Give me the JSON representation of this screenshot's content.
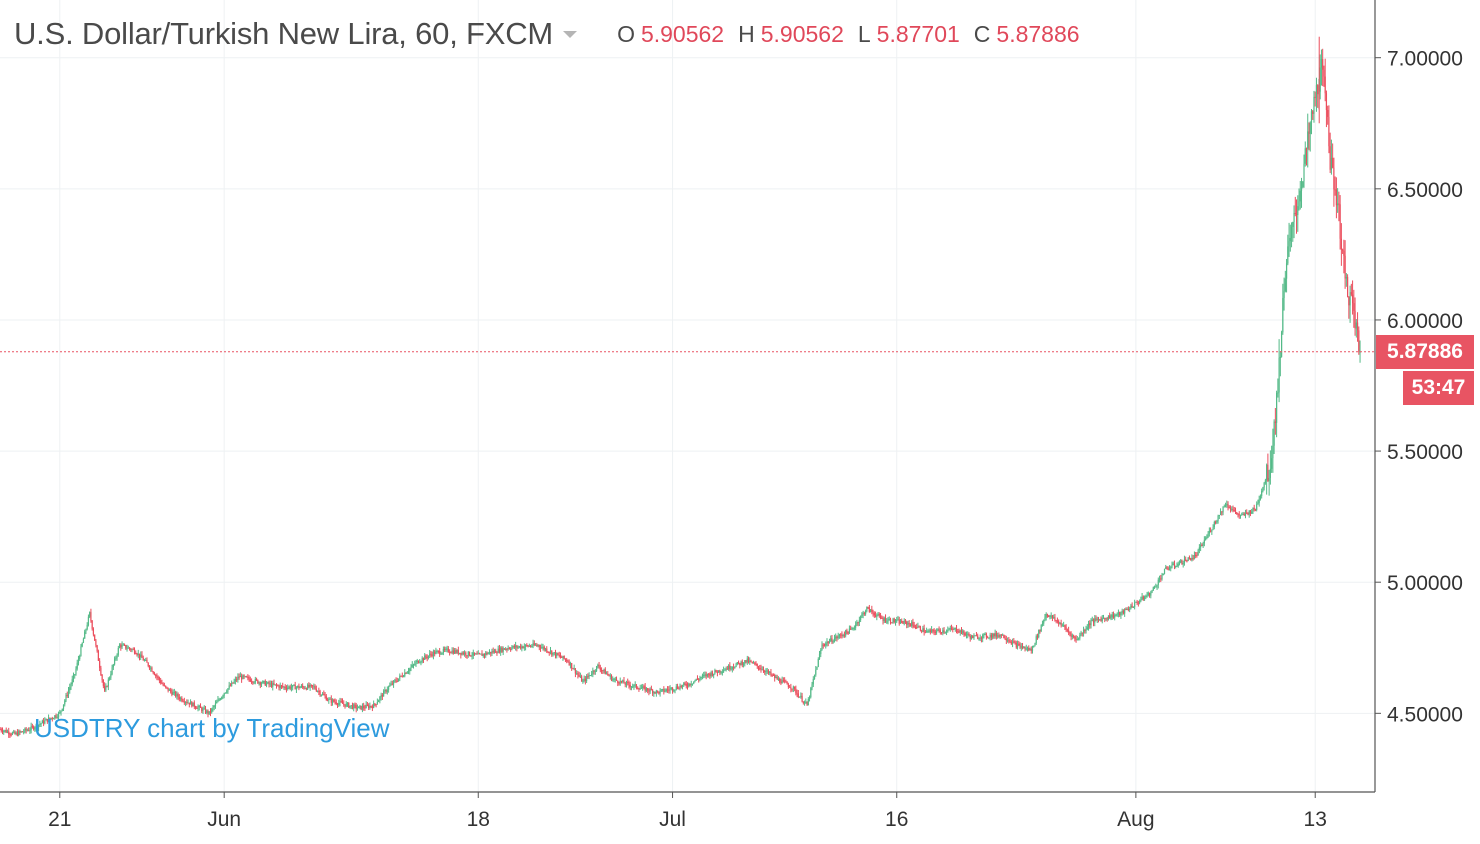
{
  "header": {
    "title": "U.S. Dollar/Turkish New Lira, 60, FXCM",
    "ohlc": {
      "o_label": "O",
      "o_value": "5.90562",
      "h_label": "H",
      "h_value": "5.90562",
      "l_label": "L",
      "l_value": "5.87701",
      "c_label": "C",
      "c_value": "5.87886"
    }
  },
  "watermark": "USDTRY chart by TradingView",
  "last_price_tag": "5.87886",
  "countdown_tag": "53:47",
  "colors": {
    "up": "#53b987",
    "down": "#eb4d5c",
    "price_tag": "#e85463",
    "grid": "#eef1f3",
    "axis": "#555555",
    "watermark": "#2d9bde"
  },
  "chart_data": {
    "type": "candlestick",
    "symbol": "USDTRY",
    "interval": "60",
    "source": "FXCM",
    "y_axis": {
      "position": "right",
      "ticks": [
        4.5,
        5.0,
        5.5,
        6.0,
        6.5,
        7.0
      ],
      "tick_labels": [
        "4.50000",
        "5.00000",
        "5.50000",
        "6.00000",
        "6.50000",
        "7.00000"
      ],
      "range": [
        4.2,
        7.22
      ]
    },
    "x_axis": {
      "tick_labels": [
        "21",
        "Jun",
        "18",
        "Jul",
        "16",
        "Aug",
        "13"
      ],
      "tick_dates": [
        "2018-05-21",
        "2018-06-01",
        "2018-06-18",
        "2018-07-01",
        "2018-07-16",
        "2018-08-01",
        "2018-08-13"
      ],
      "range": [
        "2018-05-17",
        "2018-08-17"
      ]
    },
    "grid": true,
    "last_price": 5.87886,
    "price_path": [
      [
        "2018-05-17",
        4.44
      ],
      [
        "2018-05-18",
        4.42
      ],
      [
        "2018-05-19",
        4.44
      ],
      [
        "2018-05-21",
        4.5
      ],
      [
        "2018-05-22",
        4.65
      ],
      [
        "2018-05-23",
        4.88
      ],
      [
        "2018-05-24",
        4.58
      ],
      [
        "2018-05-25",
        4.76
      ],
      [
        "2018-05-26",
        4.74
      ],
      [
        "2018-05-27",
        4.68
      ],
      [
        "2018-05-28",
        4.6
      ],
      [
        "2018-05-29",
        4.56
      ],
      [
        "2018-05-31",
        4.5
      ],
      [
        "2018-06-01",
        4.58
      ],
      [
        "2018-06-02",
        4.64
      ],
      [
        "2018-06-04",
        4.61
      ],
      [
        "2018-06-05",
        4.6
      ],
      [
        "2018-06-07",
        4.6
      ],
      [
        "2018-06-08",
        4.55
      ],
      [
        "2018-06-10",
        4.52
      ],
      [
        "2018-06-11",
        4.53
      ],
      [
        "2018-06-12",
        4.6
      ],
      [
        "2018-06-14",
        4.7
      ],
      [
        "2018-06-15",
        4.73
      ],
      [
        "2018-06-16",
        4.74
      ],
      [
        "2018-06-18",
        4.72
      ],
      [
        "2018-06-20",
        4.75
      ],
      [
        "2018-06-22",
        4.76
      ],
      [
        "2018-06-24",
        4.7
      ],
      [
        "2018-06-25",
        4.62
      ],
      [
        "2018-06-26",
        4.68
      ],
      [
        "2018-06-27",
        4.63
      ],
      [
        "2018-06-28",
        4.61
      ],
      [
        "2018-06-30",
        4.58
      ],
      [
        "2018-07-02",
        4.61
      ],
      [
        "2018-07-03",
        4.64
      ],
      [
        "2018-07-05",
        4.68
      ],
      [
        "2018-07-06",
        4.7
      ],
      [
        "2018-07-07",
        4.67
      ],
      [
        "2018-07-08",
        4.63
      ],
      [
        "2018-07-09",
        4.6
      ],
      [
        "2018-07-10",
        4.53
      ],
      [
        "2018-07-11",
        4.76
      ],
      [
        "2018-07-13",
        4.82
      ],
      [
        "2018-07-14",
        4.9
      ],
      [
        "2018-07-15",
        4.86
      ],
      [
        "2018-07-16",
        4.85
      ],
      [
        "2018-07-17",
        4.84
      ],
      [
        "2018-07-18",
        4.81
      ],
      [
        "2018-07-20",
        4.82
      ],
      [
        "2018-07-21",
        4.79
      ],
      [
        "2018-07-23",
        4.8
      ],
      [
        "2018-07-24",
        4.76
      ],
      [
        "2018-07-25",
        4.74
      ],
      [
        "2018-07-26",
        4.88
      ],
      [
        "2018-07-27",
        4.84
      ],
      [
        "2018-07-28",
        4.78
      ],
      [
        "2018-07-29",
        4.85
      ],
      [
        "2018-07-31",
        4.88
      ],
      [
        "2018-08-01",
        4.92
      ],
      [
        "2018-08-02",
        4.96
      ],
      [
        "2018-08-03",
        5.05
      ],
      [
        "2018-08-05",
        5.1
      ],
      [
        "2018-08-06",
        5.2
      ],
      [
        "2018-08-07",
        5.3
      ],
      [
        "2018-08-08",
        5.25
      ],
      [
        "2018-08-09",
        5.28
      ],
      [
        "2018-08-10",
        5.45
      ],
      [
        "2018-08-10T12",
        5.75
      ],
      [
        "2018-08-11",
        6.2
      ],
      [
        "2018-08-12",
        6.5
      ],
      [
        "2018-08-13",
        6.85
      ],
      [
        "2018-08-13T10",
        6.95
      ],
      [
        "2018-08-13T20",
        6.8
      ],
      [
        "2018-08-14",
        6.6
      ],
      [
        "2018-08-14T12",
        6.45
      ],
      [
        "2018-08-15",
        6.15
      ],
      [
        "2018-08-15T12",
        6.05
      ],
      [
        "2018-08-16",
        5.87886
      ]
    ],
    "extremes": {
      "high": 7.08,
      "high_date": "2018-08-13",
      "low": 4.4,
      "low_date": "2018-05-18"
    }
  }
}
